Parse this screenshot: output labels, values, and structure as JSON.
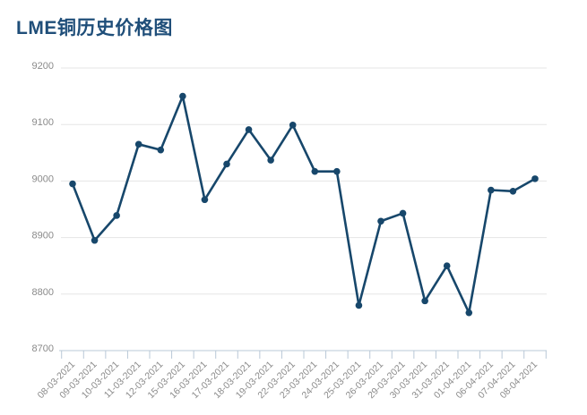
{
  "header": {
    "title": "LME铜历史价格图",
    "title_color": "#1f4e79"
  },
  "chart_data": {
    "type": "line",
    "title": "LME铜历史价格图",
    "xlabel": "",
    "ylabel": "",
    "categories": [
      "08-03-2021",
      "09-03-2021",
      "10-03-2021",
      "11-03-2021",
      "12-03-2021",
      "15-03-2021",
      "16-03-2021",
      "17-03-2021",
      "18-03-2021",
      "19-03-2021",
      "22-03-2021",
      "23-03-2021",
      "24-03-2021",
      "25-03-2021",
      "26-03-2021",
      "29-03-2021",
      "30-03-2021",
      "31-03-2021",
      "01-04-2021",
      "06-04-2021",
      "07-04-2021",
      "08-04-2021"
    ],
    "values": [
      8995,
      8895,
      8939,
      9065,
      9055,
      9150,
      8967,
      9030,
      9091,
      9037,
      9099,
      9017,
      9017,
      8780,
      8929,
      8943,
      8788,
      8850,
      8767,
      8984,
      8982,
      9004
    ],
    "ylim": [
      8700,
      9200
    ],
    "yticks": [
      9200,
      9100,
      9000,
      8900,
      8800,
      8700
    ],
    "grid": "horizontal",
    "legend": "none",
    "marker": "circle",
    "line_color": "#17476b",
    "marker_color": "#17476b",
    "gridline_color": "#e5e5e5",
    "axis_line_color": "#b9c8d7",
    "axis_label_color": "#8a8a8a"
  }
}
